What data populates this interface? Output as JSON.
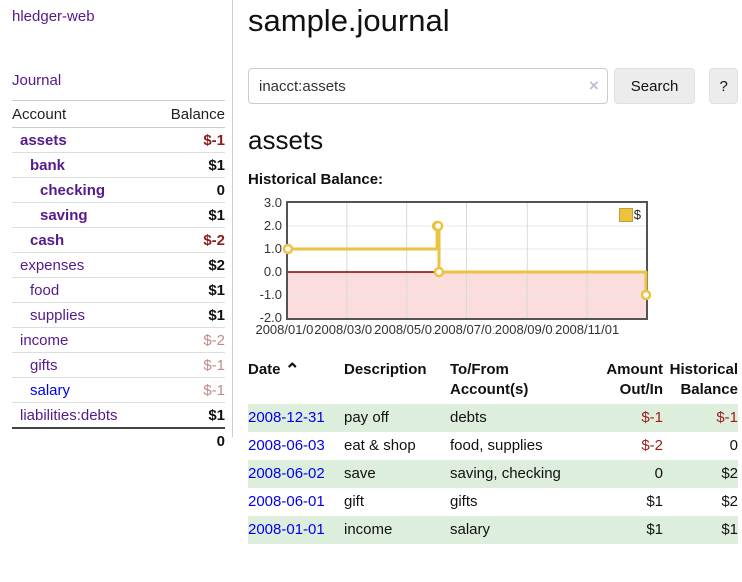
{
  "app": {
    "brand": "hledger-web"
  },
  "sidebar": {
    "journal_link": "Journal",
    "accounts": {
      "col_account": "Account",
      "col_balance": "Balance",
      "rows": [
        {
          "name": "assets",
          "balance": "$-1"
        },
        {
          "name": "bank",
          "balance": "$1"
        },
        {
          "name": "checking",
          "balance": "0"
        },
        {
          "name": "saving",
          "balance": "$1"
        },
        {
          "name": "cash",
          "balance": "$-2"
        },
        {
          "name": "expenses",
          "balance": "$2"
        },
        {
          "name": "food",
          "balance": "$1"
        },
        {
          "name": "supplies",
          "balance": "$1"
        },
        {
          "name": "income",
          "balance": "$-2"
        },
        {
          "name": "gifts",
          "balance": "$-1"
        },
        {
          "name": "salary",
          "balance": "$-1"
        },
        {
          "name": "liabilities:debts",
          "balance": "$1"
        }
      ],
      "total": "0"
    }
  },
  "main": {
    "title": "sample.journal",
    "search": {
      "value": "inacct:assets",
      "clear_icon": "×",
      "button": "Search",
      "help": "?"
    },
    "heading": "assets",
    "chart_title": "Historical Balance:"
  },
  "chart_data": {
    "type": "line",
    "step": true,
    "title": "Historical Balance",
    "series": [
      {
        "name": "$",
        "color": "#edc240",
        "points": [
          [
            "2008-01-01",
            1
          ],
          [
            "2008-06-01",
            2
          ],
          [
            "2008-06-02",
            2
          ],
          [
            "2008-06-03",
            0
          ],
          [
            "2008-12-31",
            -1
          ]
        ]
      }
    ],
    "ylim": [
      -2,
      3
    ],
    "yticks": [
      "3.0",
      "2.0",
      "1.0",
      "0.0",
      "-1.0",
      "-2.0"
    ],
    "xticks": [
      "2008/01/01",
      "2008/03/01",
      "2008/05/01",
      "2008/07/01",
      "2008/09/01",
      "2008/11/01"
    ],
    "xtick_days": [
      0,
      60,
      121,
      182,
      244,
      305
    ],
    "x_range_days": [
      0,
      365
    ],
    "grid": true,
    "negative_region_color": "#fbdddd",
    "zero_line_color": "#8b0000",
    "legend": {
      "label": "$",
      "position": "top-right",
      "swatch_color": "#edc240"
    }
  },
  "register": {
    "headers": {
      "date": "Date",
      "sort_icon": "⌃",
      "description": "Description",
      "accounts_1": "To/From",
      "accounts_2": "Account(s)",
      "amount_1": "Amount",
      "amount_2": "Out/In",
      "balance_1": "Historical",
      "balance_2": "Balance"
    },
    "rows": [
      {
        "date": "2008-12-31",
        "description": "pay off",
        "accounts": "debts",
        "amount": "$-1",
        "balance": "$-1"
      },
      {
        "date": "2008-06-03",
        "description": "eat & shop",
        "accounts": "food, supplies",
        "amount": "$-2",
        "balance": "0"
      },
      {
        "date": "2008-06-02",
        "description": "save",
        "accounts": "saving, checking",
        "amount": "0",
        "balance": "$2"
      },
      {
        "date": "2008-06-01",
        "description": "gift",
        "accounts": "gifts",
        "amount": "$1",
        "balance": "$2"
      },
      {
        "date": "2008-01-01",
        "description": "income",
        "accounts": "salary",
        "amount": "$1",
        "balance": "$1"
      }
    ]
  },
  "colors": {
    "link_purple": "#551a8b",
    "link_blue": "#0000ee",
    "negative_strong": "#8f1a1a",
    "negative_soft": "#c28b8b",
    "stripe_green": "#ddeedd",
    "series_yellow": "#edc240"
  }
}
